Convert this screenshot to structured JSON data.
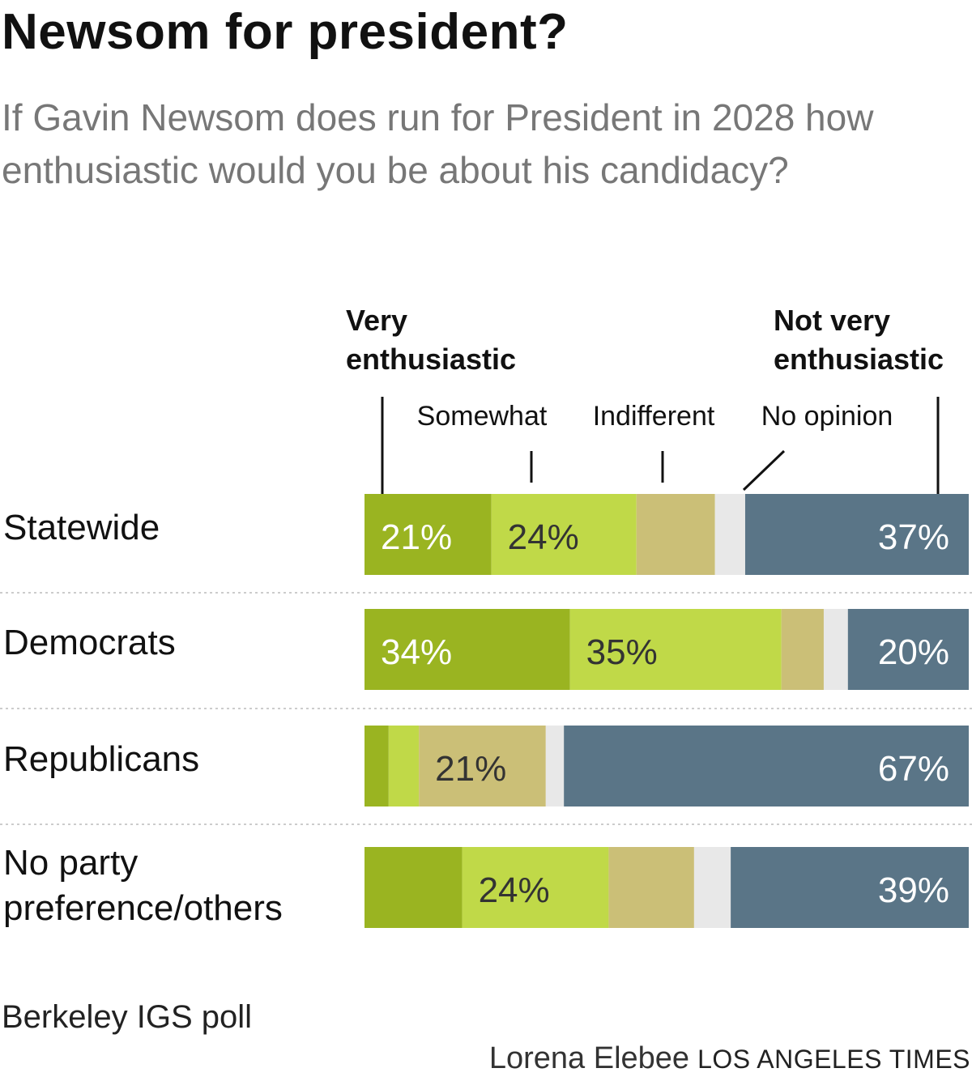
{
  "title": "Newsom for president?",
  "subtitle": "If Gavin Newsom does run for President in 2028 how enthusiastic would you be about his candidacy?",
  "source": "Berkeley IGS poll",
  "credit": {
    "author": "Lorena Elebee",
    "publisher": "LOS ANGELES TIMES"
  },
  "colors": {
    "very": "#9ab421",
    "somewhat": "#c0d948",
    "indifferent": "#cbbf77",
    "no_opinion": "#e8e8e8",
    "not_very": "#5a7587",
    "separator": "#cccccc"
  },
  "chart_data": {
    "type": "bar",
    "orientation": "horizontal",
    "stacked": true,
    "title": "Newsom for president?",
    "categories": [
      "Statewide",
      "Democrats",
      "Republicans",
      "No party preference/others"
    ],
    "category_lines": [
      [
        "Statewide"
      ],
      [
        "Democrats"
      ],
      [
        "Republicans"
      ],
      [
        "No party",
        "preference/others"
      ]
    ],
    "series": [
      {
        "key": "very",
        "name": "Very enthusiastic",
        "legend_lines": [
          "Very",
          "enthusiastic"
        ],
        "legend_bold": true,
        "values": [
          21,
          34,
          4,
          16
        ],
        "labels": [
          "21%",
          "34%",
          "",
          ""
        ],
        "label_color": "#ffffff"
      },
      {
        "key": "somewhat",
        "name": "Somewhat",
        "legend_lines": [
          "Somewhat"
        ],
        "legend_bold": false,
        "values": [
          24,
          35,
          5,
          24
        ],
        "labels": [
          "24%",
          "35%",
          "",
          "24%"
        ],
        "label_color": "#333333"
      },
      {
        "key": "indifferent",
        "name": "Indifferent",
        "legend_lines": [
          "Indifferent"
        ],
        "legend_bold": false,
        "values": [
          13,
          7,
          21,
          14
        ],
        "labels": [
          "",
          "",
          "21%",
          ""
        ],
        "label_color": "#333333"
      },
      {
        "key": "no_opinion",
        "name": "No opinion",
        "legend_lines": [
          "No opinion"
        ],
        "legend_bold": false,
        "values": [
          5,
          4,
          3,
          6
        ],
        "labels": [
          "",
          "",
          "",
          ""
        ],
        "label_color": "#333333"
      },
      {
        "key": "not_very",
        "name": "Not very enthusiastic",
        "legend_lines": [
          "Not very",
          "enthusiastic"
        ],
        "legend_bold": true,
        "values": [
          37,
          20,
          67,
          39
        ],
        "labels": [
          "37%",
          "20%",
          "67%",
          "39%"
        ],
        "label_color": "#ffffff"
      }
    ],
    "xlim": [
      0,
      100
    ],
    "unit": "%",
    "legend_position": "top"
  }
}
